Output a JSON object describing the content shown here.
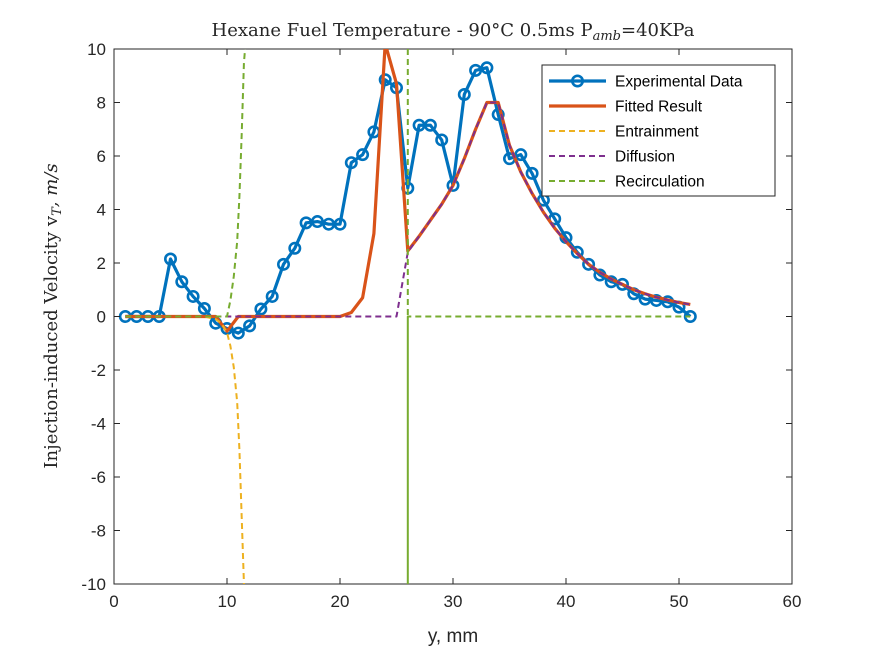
{
  "chart_data": {
    "type": "line",
    "title": "Hexane Fuel Temperature - 90°C 0.5ms P",
    "title_subscript": "amb",
    "title_suffix": "=40KPa",
    "xlabel": "y, mm",
    "ylabel": "Injection-induced Velocity v",
    "ylabel_subscript": "T",
    "ylabel_suffix": ", m/s",
    "xlim": [
      0,
      60
    ],
    "ylim": [
      -10,
      10
    ],
    "xticks": [
      "0",
      "10",
      "20",
      "30",
      "40",
      "50",
      "60"
    ],
    "yticks": [
      "-10",
      "-8",
      "-6",
      "-4",
      "-2",
      "0",
      "2",
      "4",
      "6",
      "8",
      "10"
    ],
    "grid": false,
    "legend_position": "top-right",
    "series": [
      {
        "name": "Experimental Data",
        "color": "#0072BD",
        "style": "solid-with-circle-markers",
        "x": [
          1,
          2,
          3,
          4,
          5,
          6,
          7,
          8,
          9,
          10,
          11,
          12,
          13,
          14,
          15,
          16,
          17,
          18,
          19,
          20,
          21,
          22,
          23,
          24,
          25,
          26,
          27,
          28,
          29,
          30,
          31,
          32,
          33,
          34,
          35,
          36,
          37,
          38,
          39,
          40,
          41,
          42,
          43,
          44,
          45,
          46,
          47,
          48,
          49,
          50,
          51
        ],
        "y": [
          0,
          0,
          0,
          0,
          2.15,
          1.3,
          0.75,
          0.3,
          -0.25,
          -0.45,
          -0.62,
          -0.35,
          0.28,
          0.75,
          1.95,
          2.55,
          3.5,
          3.55,
          3.45,
          3.45,
          5.75,
          6.05,
          6.9,
          8.85,
          8.55,
          4.8,
          7.15,
          7.15,
          6.6,
          4.9,
          8.3,
          9.2,
          9.3,
          7.55,
          5.9,
          6.05,
          5.35,
          4.35,
          3.65,
          2.95,
          2.4,
          1.95,
          1.55,
          1.3,
          1.2,
          0.85,
          0.65,
          0.6,
          0.55,
          0.35,
          0
        ]
      },
      {
        "name": "Fitted Result",
        "color": "#D95319",
        "style": "solid",
        "x": [
          1,
          2,
          3,
          4,
          5,
          6,
          7,
          8,
          9,
          10,
          11,
          12,
          13,
          14,
          15,
          16,
          17,
          18,
          19,
          20,
          21,
          22,
          23,
          24,
          25,
          26,
          27,
          28,
          29,
          30,
          31,
          32,
          33,
          34,
          35,
          36,
          37,
          38,
          39,
          40,
          41,
          42,
          43,
          44,
          45,
          46,
          47,
          48,
          49,
          50,
          51
        ],
        "y": [
          0,
          0,
          0,
          0,
          0,
          0,
          0,
          0,
          0,
          -0.55,
          0,
          0,
          0,
          0,
          0,
          0,
          0,
          0,
          0,
          0,
          0.15,
          0.7,
          3.1,
          10.2,
          8.7,
          2.45,
          3,
          3.6,
          4.2,
          4.9,
          5.9,
          7,
          8,
          8,
          6.4,
          5.4,
          4.6,
          3.9,
          3.3,
          2.8,
          2.35,
          1.95,
          1.65,
          1.4,
          1.2,
          1,
          0.85,
          0.72,
          0.62,
          0.52,
          0.45
        ]
      },
      {
        "name": "Entrainment",
        "color": "#EDB120",
        "style": "dashed",
        "x": [
          1,
          2,
          3,
          4,
          5,
          6,
          7,
          8,
          9,
          9.5,
          10,
          10.3,
          10.6,
          10.9,
          11.1,
          11.3,
          11.5
        ],
        "y": [
          0,
          0,
          0,
          0,
          0,
          0,
          0,
          0,
          -0.1,
          -0.25,
          -0.6,
          -1.1,
          -1.9,
          -3.2,
          -5,
          -7.5,
          -10
        ]
      },
      {
        "name": "Diffusion",
        "color": "#7E2F8E",
        "style": "dashed",
        "x": [
          1,
          10,
          20,
          24,
          25,
          25.5,
          26,
          27,
          28,
          29,
          30,
          31,
          32,
          33,
          34,
          35,
          36,
          37,
          38,
          39,
          40,
          41,
          42,
          43,
          44,
          45,
          46,
          47,
          48,
          49,
          50,
          51
        ],
        "y": [
          0,
          0,
          0,
          0,
          0,
          1.2,
          2.4,
          3,
          3.6,
          4.2,
          4.9,
          5.9,
          7,
          8,
          8,
          6.4,
          5.4,
          4.6,
          3.9,
          3.3,
          2.8,
          2.35,
          1.95,
          1.65,
          1.4,
          1.2,
          1,
          0.85,
          0.72,
          0.62,
          0.52,
          0.45
        ]
      },
      {
        "name": "Recirculation",
        "color": "#77AC30",
        "style": "dashed",
        "x": [
          1,
          9,
          10,
          10.3,
          10.6,
          10.9,
          11.1,
          11.3,
          11.5,
          11.6,
          26,
          26,
          26,
          27,
          30,
          40,
          51
        ],
        "y": [
          0,
          0,
          0,
          0.6,
          1.5,
          2.8,
          4.5,
          6.8,
          9.5,
          10,
          10,
          -10,
          0,
          0,
          0,
          0,
          0
        ],
        "break_after_index": 9
      }
    ]
  }
}
